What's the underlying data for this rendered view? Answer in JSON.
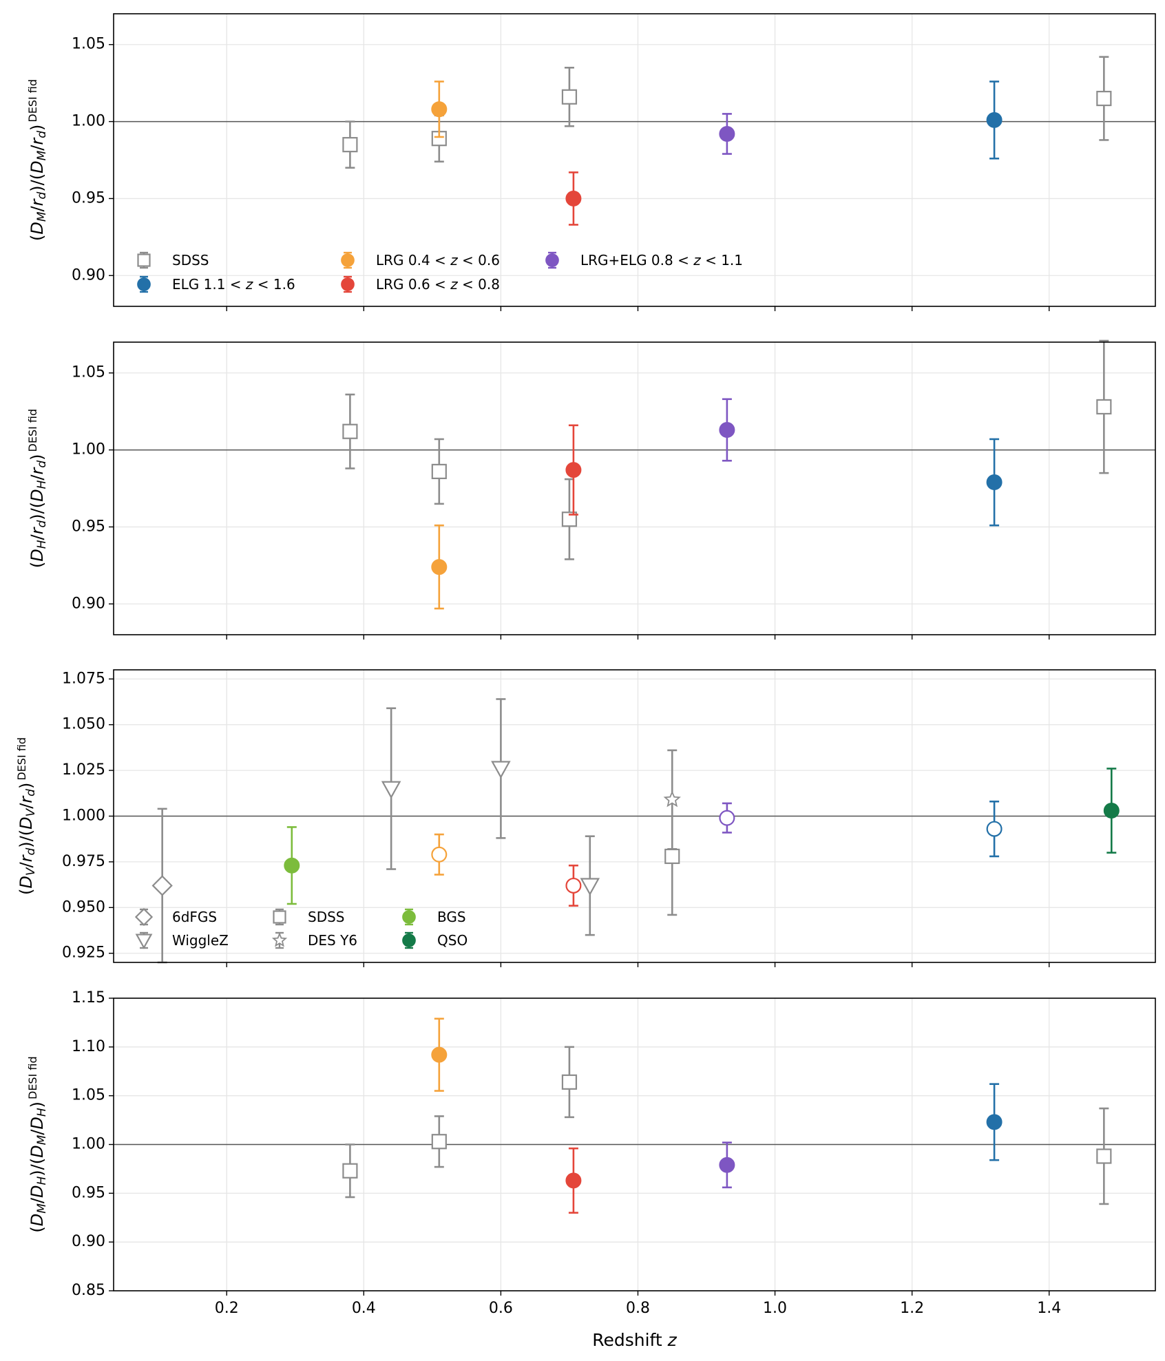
{
  "figure": {
    "xlabel": "Redshift z",
    "xlabel_main": "Redshift ",
    "xlabel_var": "z"
  },
  "colors": {
    "sdss": "#8c8c8c",
    "lrg1": "#f5a23a",
    "lrg2": "#e4463a",
    "lrgelg": "#7e56c2",
    "elg": "#2370a8",
    "bgs": "#7cbc3c",
    "qso": "#147a48",
    "grid": "#e6e6e6",
    "refline": "#555555"
  },
  "chart_data": [
    {
      "type": "scatter",
      "ylabel_parts": [
        "(",
        "D",
        "M",
        "/",
        "r",
        "d",
        ")/(",
        "D",
        "M",
        "/",
        "r",
        "d",
        ")",
        "DESI fid"
      ],
      "ylim": [
        0.88,
        1.07
      ],
      "yticks": [
        "0.90",
        "0.95",
        "1.00",
        "1.05"
      ],
      "reference_line": 1.0,
      "xlim": [
        0.035,
        1.555
      ],
      "grid": true,
      "legend": "lower-left",
      "series": [
        {
          "name": "SDSS",
          "marker": "square-open",
          "color": "#8c8c8c",
          "points": [
            {
              "x": 0.38,
              "y": 0.985,
              "err": 0.015
            },
            {
              "x": 0.51,
              "y": 0.989,
              "err": 0.015
            },
            {
              "x": 0.7,
              "y": 1.016,
              "err": 0.019
            },
            {
              "x": 1.48,
              "y": 1.015,
              "err": 0.027
            }
          ]
        },
        {
          "name": "LRG 0.4 < z < 0.6",
          "marker": "circle",
          "color": "#f5a23a",
          "points": [
            {
              "x": 0.51,
              "y": 1.008,
              "err": 0.018
            }
          ]
        },
        {
          "name": "LRG 0.6 < z < 0.8",
          "marker": "circle",
          "color": "#e4463a",
          "points": [
            {
              "x": 0.706,
              "y": 0.95,
              "err": 0.017
            }
          ]
        },
        {
          "name": "LRG+ELG 0.8 < z < 1.1",
          "marker": "circle",
          "color": "#7e56c2",
          "points": [
            {
              "x": 0.93,
              "y": 0.992,
              "err": 0.013
            }
          ]
        },
        {
          "name": "ELG 1.1 < z < 1.6",
          "marker": "circle",
          "color": "#2370a8",
          "points": [
            {
              "x": 1.32,
              "y": 1.001,
              "err": 0.025
            }
          ]
        }
      ],
      "legend_items": [
        {
          "label": "SDSS",
          "marker": "square-open",
          "color": "#8c8c8c"
        },
        {
          "label": "ELG 1.1 < z < 1.6",
          "marker": "circle",
          "color": "#2370a8"
        },
        {
          "label": "LRG 0.4 < z < 0.6",
          "marker": "circle",
          "color": "#f5a23a"
        },
        {
          "label": "LRG 0.6 < z < 0.8",
          "marker": "circle",
          "color": "#e4463a"
        },
        {
          "label": "LRG+ELG 0.8 < z < 1.1",
          "marker": "circle",
          "color": "#7e56c2"
        }
      ]
    },
    {
      "type": "scatter",
      "ylabel_parts": [
        "(",
        "D",
        "H",
        "/",
        "r",
        "d",
        ")/(",
        "D",
        "H",
        "/",
        "r",
        "d",
        ")",
        "DESI fid"
      ],
      "ylim": [
        0.88,
        1.07
      ],
      "yticks": [
        "0.90",
        "0.95",
        "1.00",
        "1.05"
      ],
      "reference_line": 1.0,
      "xlim": [
        0.035,
        1.555
      ],
      "grid": true,
      "series": [
        {
          "name": "SDSS",
          "marker": "square-open",
          "color": "#8c8c8c",
          "points": [
            {
              "x": 0.38,
              "y": 1.012,
              "err": 0.024
            },
            {
              "x": 0.51,
              "y": 0.986,
              "err": 0.021
            },
            {
              "x": 0.7,
              "y": 0.955,
              "err": 0.026
            },
            {
              "x": 1.48,
              "y": 1.028,
              "err": 0.043
            }
          ]
        },
        {
          "name": "LRG 0.4 < z < 0.6",
          "marker": "circle",
          "color": "#f5a23a",
          "points": [
            {
              "x": 0.51,
              "y": 0.924,
              "err": 0.027
            }
          ]
        },
        {
          "name": "LRG 0.6 < z < 0.8",
          "marker": "circle",
          "color": "#e4463a",
          "points": [
            {
              "x": 0.706,
              "y": 0.987,
              "err": 0.029
            }
          ]
        },
        {
          "name": "LRG+ELG 0.8 < z < 1.1",
          "marker": "circle",
          "color": "#7e56c2",
          "points": [
            {
              "x": 0.93,
              "y": 1.013,
              "err": 0.02
            }
          ]
        },
        {
          "name": "ELG 1.1 < z < 1.6",
          "marker": "circle",
          "color": "#2370a8",
          "points": [
            {
              "x": 1.32,
              "y": 0.979,
              "err": 0.028
            }
          ]
        }
      ]
    },
    {
      "type": "scatter",
      "ylabel_parts": [
        "(",
        "D",
        "V",
        "/",
        "r",
        "d",
        ")/(",
        "D",
        "V",
        "/",
        "r",
        "d",
        ")",
        "DESI fid"
      ],
      "ylim": [
        0.92,
        1.08
      ],
      "yticks": [
        "0.925",
        "0.950",
        "0.975",
        "1.000",
        "1.025",
        "1.050",
        "1.075"
      ],
      "reference_line": 1.0,
      "xlim": [
        0.035,
        1.555
      ],
      "grid": true,
      "legend": "lower-left",
      "series": [
        {
          "name": "6dFGS",
          "marker": "diamond-open",
          "color": "#8c8c8c",
          "points": [
            {
              "x": 0.106,
              "y": 0.962,
              "err": 0.042
            }
          ]
        },
        {
          "name": "WiggleZ",
          "marker": "triangle-down-open",
          "color": "#8c8c8c",
          "points": [
            {
              "x": 0.44,
              "y": 1.015,
              "err": 0.044
            },
            {
              "x": 0.6,
              "y": 1.026,
              "err": 0.038
            },
            {
              "x": 0.73,
              "y": 0.962,
              "err": 0.027
            }
          ]
        },
        {
          "name": "SDSS",
          "marker": "square-open",
          "color": "#8c8c8c",
          "points": [
            {
              "x": 0.85,
              "y": 0.978,
              "err": 0.032
            }
          ]
        },
        {
          "name": "DES Y6",
          "marker": "star-open",
          "color": "#8c8c8c",
          "points": [
            {
              "x": 0.85,
              "y": 1.009,
              "err": 0.027
            }
          ]
        },
        {
          "name": "BGS",
          "marker": "circle",
          "color": "#7cbc3c",
          "points": [
            {
              "x": 0.295,
              "y": 0.973,
              "err": 0.021
            }
          ]
        },
        {
          "name": "LRG 0.4 < z < 0.6",
          "marker": "circle-open",
          "color": "#f5a23a",
          "points": [
            {
              "x": 0.51,
              "y": 0.979,
              "err": 0.011
            }
          ]
        },
        {
          "name": "LRG 0.6 < z < 0.8",
          "marker": "circle-open",
          "color": "#e4463a",
          "points": [
            {
              "x": 0.706,
              "y": 0.962,
              "err": 0.011
            }
          ]
        },
        {
          "name": "LRG+ELG 0.8 < z < 1.1",
          "marker": "circle-open",
          "color": "#7e56c2",
          "points": [
            {
              "x": 0.93,
              "y": 0.999,
              "err": 0.008
            }
          ]
        },
        {
          "name": "ELG 1.1 < z < 1.6",
          "marker": "circle-open",
          "color": "#2370a8",
          "points": [
            {
              "x": 1.32,
              "y": 0.993,
              "err": 0.015
            }
          ]
        },
        {
          "name": "QSO",
          "marker": "circle",
          "color": "#147a48",
          "points": [
            {
              "x": 1.491,
              "y": 1.003,
              "err": 0.023
            }
          ]
        }
      ],
      "legend_items": [
        {
          "label": "6dFGS",
          "marker": "diamond-open",
          "color": "#8c8c8c"
        },
        {
          "label": "WiggleZ",
          "marker": "triangle-down-open",
          "color": "#8c8c8c"
        },
        {
          "label": "SDSS",
          "marker": "square-open",
          "color": "#8c8c8c"
        },
        {
          "label": "DES Y6",
          "marker": "star-open",
          "color": "#8c8c8c"
        },
        {
          "label": "BGS",
          "marker": "circle",
          "color": "#7cbc3c"
        },
        {
          "label": "QSO",
          "marker": "circle",
          "color": "#147a48"
        }
      ]
    },
    {
      "type": "scatter",
      "ylabel_parts": [
        "(",
        "D",
        "M",
        "/",
        "D",
        "H",
        ")/(",
        "D",
        "M",
        "/",
        "D",
        "H",
        ")",
        "DESI fid"
      ],
      "ylim": [
        0.85,
        1.15
      ],
      "yticks": [
        "0.85",
        "0.90",
        "0.95",
        "1.00",
        "1.05",
        "1.10",
        "1.15"
      ],
      "reference_line": 1.0,
      "xlim": [
        0.035,
        1.555
      ],
      "grid": true,
      "xticks": [
        "0.2",
        "0.4",
        "0.6",
        "0.8",
        "1.0",
        "1.2",
        "1.4"
      ],
      "series": [
        {
          "name": "SDSS",
          "marker": "square-open",
          "color": "#8c8c8c",
          "points": [
            {
              "x": 0.38,
              "y": 0.973,
              "err": 0.027
            },
            {
              "x": 0.51,
              "y": 1.003,
              "err": 0.026
            },
            {
              "x": 0.7,
              "y": 1.064,
              "err": 0.036
            },
            {
              "x": 1.48,
              "y": 0.988,
              "err": 0.049
            }
          ]
        },
        {
          "name": "LRG 0.4 < z < 0.6",
          "marker": "circle",
          "color": "#f5a23a",
          "points": [
            {
              "x": 0.51,
              "y": 1.092,
              "err": 0.037
            }
          ]
        },
        {
          "name": "LRG 0.6 < z < 0.8",
          "marker": "circle",
          "color": "#e4463a",
          "points": [
            {
              "x": 0.706,
              "y": 0.963,
              "err": 0.033
            }
          ]
        },
        {
          "name": "LRG+ELG 0.8 < z < 1.1",
          "marker": "circle",
          "color": "#7e56c2",
          "points": [
            {
              "x": 0.93,
              "y": 0.979,
              "err": 0.023
            }
          ]
        },
        {
          "name": "ELG 1.1 < z < 1.6",
          "marker": "circle",
          "color": "#2370a8",
          "points": [
            {
              "x": 1.32,
              "y": 1.023,
              "err": 0.039
            }
          ]
        }
      ]
    }
  ]
}
